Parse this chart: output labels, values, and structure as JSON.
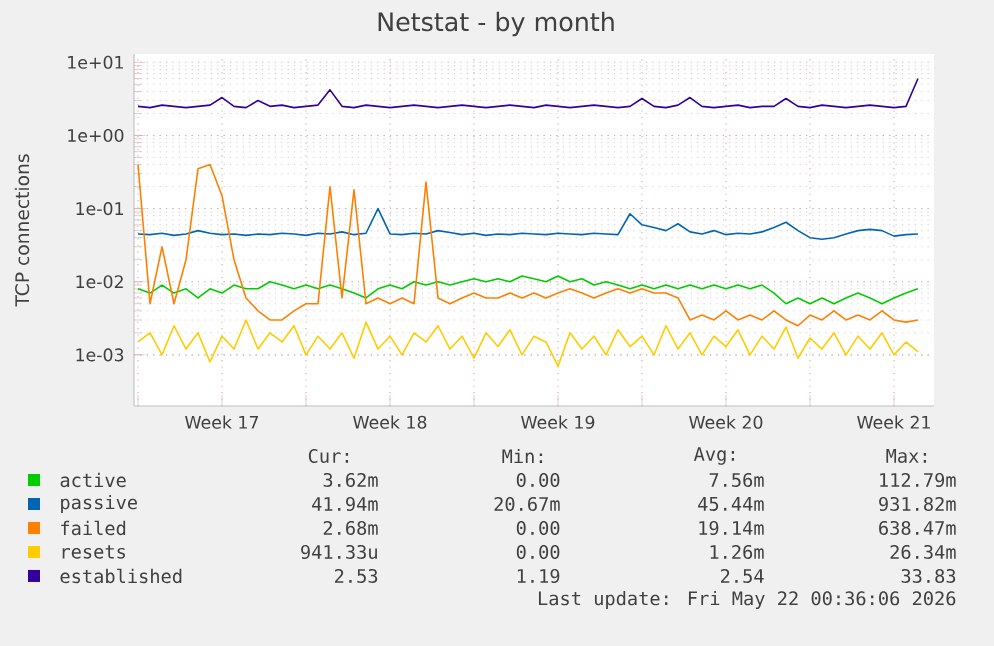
{
  "chart_data": {
    "type": "line",
    "title": "Netstat - by month",
    "ylabel": "TCP connections",
    "log": true,
    "grid": true,
    "legend": "bottom",
    "xlim": [
      "2026-04-19T20:00",
      "2026-05-23T04:00"
    ],
    "ylim": [
      0.0002,
      13
    ],
    "xticks": [
      {
        "value": "2026-04-20",
        "label": null
      },
      {
        "value": "2026-04-23T12:00",
        "label": "Week 17"
      },
      {
        "value": "2026-04-27",
        "label": null
      },
      {
        "value": "2026-04-30T12:00",
        "label": "Week 18"
      },
      {
        "value": "2026-05-04",
        "label": null
      },
      {
        "value": "2026-05-07T12:00",
        "label": "Week 19"
      },
      {
        "value": "2026-05-11",
        "label": null
      },
      {
        "value": "2026-05-14T12:00",
        "label": "Week 20"
      },
      {
        "value": "2026-05-18",
        "label": null
      },
      {
        "value": "2026-05-21T12:00",
        "label": "Week 21"
      }
    ],
    "yticks": [
      {
        "value": 0.001,
        "label": "1e-03"
      },
      {
        "value": 0.01,
        "label": "1e-02"
      },
      {
        "value": 0.1,
        "label": "1e-01"
      },
      {
        "value": 1,
        "label": "1e+00"
      },
      {
        "value": 10,
        "label": "1e+01"
      }
    ],
    "x": [
      "2026-04-20T00:00",
      "2026-04-20T12:00",
      "2026-04-21T00:00",
      "2026-04-21T12:00",
      "2026-04-22T00:00",
      "2026-04-22T12:00",
      "2026-04-23T00:00",
      "2026-04-23T12:00",
      "2026-04-24T00:00",
      "2026-04-24T12:00",
      "2026-04-25T00:00",
      "2026-04-25T12:00",
      "2026-04-26T00:00",
      "2026-04-26T12:00",
      "2026-04-27T00:00",
      "2026-04-27T12:00",
      "2026-04-28T00:00",
      "2026-04-28T12:00",
      "2026-04-29T00:00",
      "2026-04-29T12:00",
      "2026-04-30T00:00",
      "2026-04-30T12:00",
      "2026-05-01T00:00",
      "2026-05-01T12:00",
      "2026-05-02T00:00",
      "2026-05-02T12:00",
      "2026-05-03T00:00",
      "2026-05-03T12:00",
      "2026-05-04T00:00",
      "2026-05-04T12:00",
      "2026-05-05T00:00",
      "2026-05-05T12:00",
      "2026-05-06T00:00",
      "2026-05-06T12:00",
      "2026-05-07T00:00",
      "2026-05-07T12:00",
      "2026-05-08T00:00",
      "2026-05-08T12:00",
      "2026-05-09T00:00",
      "2026-05-09T12:00",
      "2026-05-10T00:00",
      "2026-05-10T12:00",
      "2026-05-11T00:00",
      "2026-05-11T12:00",
      "2026-05-12T00:00",
      "2026-05-12T12:00",
      "2026-05-13T00:00",
      "2026-05-13T12:00",
      "2026-05-14T00:00",
      "2026-05-14T12:00",
      "2026-05-15T00:00",
      "2026-05-15T12:00",
      "2026-05-16T00:00",
      "2026-05-16T12:00",
      "2026-05-17T00:00",
      "2026-05-17T12:00",
      "2026-05-18T00:00",
      "2026-05-18T12:00",
      "2026-05-19T00:00",
      "2026-05-19T12:00",
      "2026-05-20T00:00",
      "2026-05-20T12:00",
      "2026-05-21T00:00",
      "2026-05-21T12:00",
      "2026-05-22T00:00",
      "2026-05-22T12:00"
    ],
    "series": [
      {
        "name": "active",
        "color": "#00cc00",
        "values": [
          0.008,
          0.007,
          0.009,
          0.007,
          0.008,
          0.006,
          0.008,
          0.007,
          0.009,
          0.008,
          0.008,
          0.01,
          0.009,
          0.008,
          0.009,
          0.008,
          0.009,
          0.008,
          0.007,
          0.006,
          0.008,
          0.009,
          0.008,
          0.01,
          0.009,
          0.01,
          0.009,
          0.01,
          0.011,
          0.01,
          0.011,
          0.01,
          0.012,
          0.011,
          0.01,
          0.012,
          0.01,
          0.011,
          0.009,
          0.01,
          0.009,
          0.008,
          0.009,
          0.008,
          0.009,
          0.008,
          0.009,
          0.008,
          0.009,
          0.008,
          0.009,
          0.008,
          0.009,
          0.007,
          0.005,
          0.006,
          0.005,
          0.006,
          0.005,
          0.006,
          0.007,
          0.006,
          0.005,
          0.006,
          0.007,
          0.008
        ]
      },
      {
        "name": "passive",
        "color": "#0066b3",
        "values": [
          0.045,
          0.044,
          0.046,
          0.043,
          0.045,
          0.05,
          0.046,
          0.044,
          0.045,
          0.043,
          0.045,
          0.044,
          0.046,
          0.045,
          0.043,
          0.046,
          0.045,
          0.048,
          0.044,
          0.046,
          0.1,
          0.045,
          0.044,
          0.046,
          0.045,
          0.05,
          0.047,
          0.044,
          0.046,
          0.043,
          0.045,
          0.044,
          0.046,
          0.045,
          0.044,
          0.046,
          0.045,
          0.044,
          0.046,
          0.045,
          0.044,
          0.085,
          0.06,
          0.055,
          0.05,
          0.062,
          0.048,
          0.045,
          0.05,
          0.044,
          0.046,
          0.045,
          0.048,
          0.055,
          0.065,
          0.05,
          0.04,
          0.038,
          0.04,
          0.045,
          0.05,
          0.052,
          0.05,
          0.042,
          0.044,
          0.045
        ]
      },
      {
        "name": "failed",
        "color": "#ff8000",
        "values": [
          0.4,
          0.005,
          0.03,
          0.005,
          0.02,
          0.35,
          0.4,
          0.15,
          0.02,
          0.006,
          0.004,
          0.003,
          0.003,
          0.004,
          0.005,
          0.005,
          0.2,
          0.006,
          0.18,
          0.005,
          0.006,
          0.005,
          0.006,
          0.005,
          0.23,
          0.006,
          0.005,
          0.006,
          0.007,
          0.006,
          0.006,
          0.007,
          0.006,
          0.007,
          0.006,
          0.007,
          0.008,
          0.007,
          0.006,
          0.007,
          0.008,
          0.007,
          0.008,
          0.007,
          0.007,
          0.006,
          0.003,
          0.0035,
          0.003,
          0.004,
          0.003,
          0.0035,
          0.003,
          0.004,
          0.003,
          0.0025,
          0.0035,
          0.003,
          0.004,
          0.003,
          0.0035,
          0.003,
          0.004,
          0.003,
          0.0028,
          0.003
        ]
      },
      {
        "name": "resets",
        "color": "#ffcc00",
        "values": [
          0.0015,
          0.002,
          0.001,
          0.0025,
          0.0012,
          0.002,
          0.0008,
          0.0018,
          0.0012,
          0.003,
          0.0012,
          0.002,
          0.0015,
          0.0025,
          0.001,
          0.0018,
          0.0012,
          0.002,
          0.0009,
          0.0028,
          0.0012,
          0.0018,
          0.001,
          0.002,
          0.0015,
          0.0025,
          0.0012,
          0.0018,
          0.0009,
          0.002,
          0.0013,
          0.0022,
          0.001,
          0.0018,
          0.0015,
          0.0007,
          0.002,
          0.0012,
          0.0018,
          0.001,
          0.0022,
          0.0013,
          0.0018,
          0.001,
          0.0025,
          0.0012,
          0.002,
          0.001,
          0.0018,
          0.0013,
          0.0022,
          0.001,
          0.0018,
          0.0012,
          0.0024,
          0.0009,
          0.0017,
          0.0012,
          0.002,
          0.001,
          0.0018,
          0.0012,
          0.002,
          0.001,
          0.0015,
          0.0011
        ]
      },
      {
        "name": "established",
        "color": "#330099",
        "values": [
          2.5,
          2.4,
          2.6,
          2.5,
          2.4,
          2.5,
          2.6,
          3.3,
          2.5,
          2.4,
          3.0,
          2.5,
          2.6,
          2.4,
          2.5,
          2.6,
          4.2,
          2.5,
          2.4,
          2.6,
          2.5,
          2.4,
          2.5,
          2.6,
          2.5,
          2.4,
          2.5,
          2.6,
          2.5,
          2.4,
          2.5,
          2.6,
          2.5,
          2.4,
          2.6,
          2.5,
          2.4,
          2.5,
          2.6,
          2.5,
          2.4,
          2.5,
          3.2,
          2.5,
          2.4,
          2.6,
          3.3,
          2.5,
          2.4,
          2.5,
          2.6,
          2.4,
          2.5,
          2.5,
          3.2,
          2.5,
          2.4,
          2.6,
          2.5,
          2.4,
          2.5,
          2.6,
          2.5,
          2.4,
          2.5,
          6.0
        ]
      }
    ],
    "annotations": [
      "Cur:",
      "Min:",
      "Avg:",
      "Max:",
      "3.62m",
      "0.00",
      "7.56m",
      "112.79m",
      "41.94m",
      "20.67m",
      "45.44m",
      "931.82m",
      "2.68m",
      "0.00",
      "19.14m",
      "638.47m",
      "941.33u",
      "0.00",
      "1.26m",
      "26.34m",
      "2.53",
      "1.19",
      "2.54",
      "33.83",
      "Last update: Fri May 22 00:36:06 2026"
    ]
  }
}
